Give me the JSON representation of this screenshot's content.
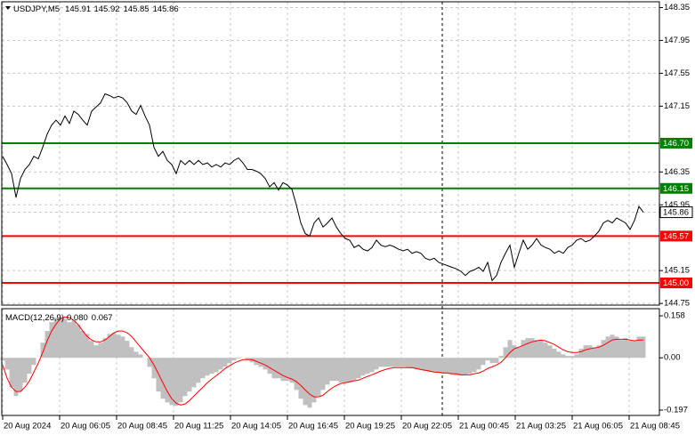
{
  "chart_data": [
    {
      "type": "line",
      "title": "USDJPY,M5",
      "ohlc": [
        145.91,
        145.92,
        145.85,
        145.86
      ],
      "color": "#000000",
      "values": [
        146.54,
        146.44,
        146.33,
        146.04,
        146.27,
        146.38,
        146.44,
        146.54,
        146.51,
        146.65,
        146.81,
        146.92,
        146.98,
        146.92,
        147.03,
        146.94,
        147.09,
        147.05,
        146.98,
        146.92,
        147.09,
        147.14,
        147.19,
        147.3,
        147.28,
        147.25,
        147.27,
        147.25,
        147.19,
        147.09,
        147.05,
        147.16,
        147.03,
        146.92,
        146.65,
        146.54,
        146.6,
        146.49,
        146.44,
        146.33,
        146.49,
        146.44,
        146.49,
        146.44,
        146.49,
        146.44,
        146.46,
        146.41,
        146.44,
        146.41,
        146.46,
        146.44,
        146.49,
        146.52,
        146.46,
        146.38,
        146.38,
        146.36,
        146.33,
        146.27,
        146.17,
        146.22,
        146.13,
        146.22,
        146.19,
        146.14,
        145.95,
        145.73,
        145.6,
        145.57,
        145.73,
        145.79,
        145.68,
        145.73,
        145.79,
        145.68,
        145.6,
        145.54,
        145.52,
        145.43,
        145.46,
        145.41,
        145.39,
        145.43,
        145.52,
        145.46,
        145.44,
        145.46,
        145.44,
        145.41,
        145.39,
        145.41,
        145.36,
        145.38,
        145.36,
        145.3,
        145.28,
        145.3,
        145.25,
        145.23,
        145.21,
        145.19,
        145.17,
        145.14,
        145.09,
        145.14,
        145.16,
        145.19,
        145.14,
        145.25,
        145.03,
        145.09,
        145.25,
        145.36,
        145.46,
        145.19,
        145.36,
        145.52,
        145.41,
        145.46,
        145.54,
        145.46,
        145.43,
        145.41,
        145.36,
        145.39,
        145.36,
        145.43,
        145.46,
        145.52,
        145.54,
        145.5,
        145.52,
        145.57,
        145.63,
        145.73,
        145.76,
        145.73,
        145.79,
        145.76,
        145.73,
        145.65,
        145.76,
        145.93,
        145.86
      ],
      "xlim": [
        -0.6,
        147.6
      ],
      "xticks": [
        {
          "value": 0,
          "label": "20 Aug 2024"
        },
        {
          "value": 12.8,
          "label": "20 Aug 06:05"
        },
        {
          "value": 25.6,
          "label": "20 Aug 08:45"
        },
        {
          "value": 38.4,
          "label": "20 Aug 11:25"
        },
        {
          "value": 51.2,
          "label": "20 Aug 14:05"
        },
        {
          "value": 64,
          "label": "20 Aug 16:45"
        },
        {
          "value": 76.8,
          "label": "20 Aug 19:25"
        },
        {
          "value": 89.6,
          "label": "20 Aug 22:05"
        },
        {
          "value": 102.4,
          "label": "21 Aug 00:45"
        },
        {
          "value": 115.2,
          "label": "21 Aug 03:25"
        },
        {
          "value": 128,
          "label": "21 Aug 06:05"
        },
        {
          "value": 140.8,
          "label": "21 Aug 08:45"
        }
      ],
      "ylim": [
        144.73,
        148.42
      ],
      "yticks": [
        148.35,
        147.95,
        147.55,
        147.15,
        146.35,
        145.95,
        145.15,
        144.75
      ],
      "grid": true,
      "levels": [
        {
          "value": 146.7,
          "label": "146.70",
          "color": "#008000"
        },
        {
          "value": 146.15,
          "color": "#008000"
        },
        {
          "value": 145.57,
          "color": "#ff0000"
        },
        {
          "value": 145,
          "label": "145.00",
          "color": "#ff0000"
        }
      ]
    },
    {
      "type": "macd",
      "title": "MACD(12,26,9)",
      "indicator_values": [
        {
          "value": 0.08,
          "label": "0.080"
        },
        {
          "value": 0.067,
          "label": "0.067"
        }
      ],
      "histogram": {
        "color": "#c0c0c0",
        "values": [
          -0.01,
          -0.044,
          -0.111,
          -0.144,
          -0.127,
          -0.094,
          -0.06,
          -0.027,
          0,
          0.057,
          0.101,
          0.134,
          0.151,
          0.151,
          0.147,
          0.134,
          0.141,
          0.124,
          0.101,
          0.09,
          0.064,
          0.047,
          0.057,
          0.074,
          0.09,
          0.094,
          0.087,
          0.08,
          0.064,
          0.04,
          0.023,
          0.013,
          0,
          -0.034,
          -0.077,
          -0.127,
          -0.154,
          -0.168,
          -0.178,
          -0.181,
          -0.168,
          -0.144,
          -0.127,
          -0.111,
          -0.094,
          -0.077,
          -0.067,
          -0.06,
          -0.054,
          -0.044,
          -0.034,
          -0.02,
          -0.01,
          -0.003,
          0,
          -0.007,
          -0.017,
          -0.027,
          -0.034,
          -0.044,
          -0.06,
          -0.077,
          -0.077,
          -0.087,
          -0.087,
          -0.094,
          -0.121,
          -0.154,
          -0.178,
          -0.188,
          -0.168,
          -0.144,
          -0.121,
          -0.101,
          -0.087,
          -0.087,
          -0.094,
          -0.094,
          -0.094,
          -0.087,
          -0.077,
          -0.067,
          -0.06,
          -0.054,
          -0.044,
          -0.034,
          -0.034,
          -0.034,
          -0.034,
          -0.034,
          -0.034,
          -0.037,
          -0.04,
          -0.044,
          -0.047,
          -0.05,
          -0.054,
          -0.054,
          -0.057,
          -0.06,
          -0.06,
          -0.064,
          -0.067,
          -0.067,
          -0.064,
          -0.06,
          -0.054,
          -0.044,
          -0.027,
          -0.01,
          -0.02,
          -0.02,
          0.007,
          0.04,
          0.067,
          0.047,
          0.04,
          0.067,
          0.074,
          0.074,
          0.067,
          0.067,
          0.057,
          0.047,
          0.034,
          0.023,
          0.013,
          0.007,
          0.007,
          0.013,
          0.034,
          0.047,
          0.047,
          0.04,
          0.047,
          0.067,
          0.08,
          0.087,
          0.08,
          0.067,
          0.074,
          0.064,
          0.064,
          0.08,
          0.08
        ]
      },
      "signal": {
        "color": "#ff0000",
        "values": [
          -0.027,
          -0.077,
          -0.111,
          -0.127,
          -0.127,
          -0.111,
          -0.087,
          -0.054,
          -0.02,
          0.02,
          0.064,
          0.101,
          0.127,
          0.147,
          0.154,
          0.151,
          0.141,
          0.124,
          0.101,
          0.08,
          0.067,
          0.06,
          0.06,
          0.067,
          0.08,
          0.094,
          0.101,
          0.101,
          0.094,
          0.08,
          0.06,
          0.04,
          0.02,
          0,
          -0.027,
          -0.06,
          -0.094,
          -0.127,
          -0.154,
          -0.171,
          -0.178,
          -0.174,
          -0.161,
          -0.144,
          -0.127,
          -0.111,
          -0.094,
          -0.08,
          -0.067,
          -0.054,
          -0.04,
          -0.03,
          -0.02,
          -0.013,
          -0.007,
          -0.007,
          -0.007,
          -0.013,
          -0.02,
          -0.027,
          -0.037,
          -0.047,
          -0.057,
          -0.067,
          -0.074,
          -0.08,
          -0.09,
          -0.104,
          -0.121,
          -0.137,
          -0.147,
          -0.147,
          -0.141,
          -0.127,
          -0.114,
          -0.104,
          -0.097,
          -0.094,
          -0.09,
          -0.087,
          -0.084,
          -0.077,
          -0.07,
          -0.064,
          -0.057,
          -0.05,
          -0.044,
          -0.04,
          -0.037,
          -0.037,
          -0.037,
          -0.037,
          -0.037,
          -0.04,
          -0.044,
          -0.047,
          -0.05,
          -0.054,
          -0.054,
          -0.057,
          -0.057,
          -0.06,
          -0.06,
          -0.064,
          -0.064,
          -0.064,
          -0.06,
          -0.057,
          -0.05,
          -0.04,
          -0.034,
          -0.027,
          -0.017,
          0,
          0.02,
          0.034,
          0.04,
          0.047,
          0.054,
          0.06,
          0.064,
          0.067,
          0.064,
          0.057,
          0.05,
          0.04,
          0.03,
          0.023,
          0.02,
          0.02,
          0.023,
          0.03,
          0.034,
          0.037,
          0.04,
          0.047,
          0.057,
          0.067,
          0.07,
          0.07,
          0.07,
          0.067,
          0.064,
          0.067,
          0.067
        ]
      },
      "ylim": [
        -0.217,
        0.185
      ],
      "yticks": [
        0.158,
        {
          "value": 0,
          "label": "0.00"
        },
        -0.197
      ]
    }
  ]
}
